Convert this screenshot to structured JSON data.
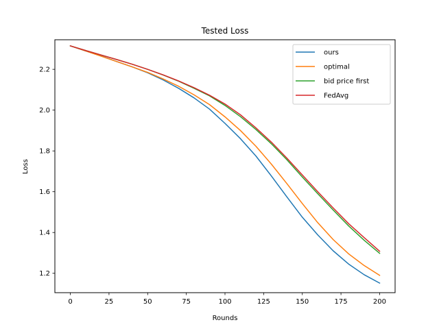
{
  "chart_data": {
    "type": "line",
    "title": "Tested Loss",
    "xlabel": "Rounds",
    "ylabel": "Loss",
    "xlim": [
      -10,
      210
    ],
    "ylim": [
      1.105,
      2.345
    ],
    "xticks": [
      0,
      25,
      50,
      75,
      100,
      125,
      150,
      175,
      200
    ],
    "yticks": [
      1.2,
      1.4,
      1.6,
      1.8,
      2.0,
      2.2
    ],
    "legend_position": "upper-right",
    "grid": false,
    "x": [
      0,
      10,
      20,
      30,
      40,
      50,
      60,
      70,
      80,
      90,
      100,
      110,
      120,
      130,
      140,
      150,
      160,
      170,
      180,
      190,
      200
    ],
    "series": [
      {
        "name": "ours",
        "color": "#1f77b4",
        "values": [
          2.315,
          2.29,
          2.265,
          2.238,
          2.212,
          2.183,
          2.148,
          2.107,
          2.06,
          2.005,
          1.935,
          1.86,
          1.775,
          1.677,
          1.575,
          1.475,
          1.388,
          1.31,
          1.245,
          1.193,
          1.152
        ]
      },
      {
        "name": "optimal",
        "color": "#ff7f0e",
        "values": [
          2.315,
          2.29,
          2.264,
          2.238,
          2.212,
          2.185,
          2.153,
          2.117,
          2.075,
          2.027,
          1.967,
          1.9,
          1.823,
          1.735,
          1.64,
          1.542,
          1.448,
          1.365,
          1.295,
          1.238,
          1.19
        ]
      },
      {
        "name": "bid price first",
        "color": "#2ca02c",
        "values": [
          2.315,
          2.292,
          2.27,
          2.248,
          2.225,
          2.2,
          2.172,
          2.142,
          2.107,
          2.07,
          2.023,
          1.968,
          1.905,
          1.835,
          1.757,
          1.672,
          1.59,
          1.51,
          1.432,
          1.362,
          1.298
        ]
      },
      {
        "name": "FedAvg",
        "color": "#d62728",
        "values": [
          2.315,
          2.292,
          2.27,
          2.248,
          2.225,
          2.2,
          2.173,
          2.143,
          2.11,
          2.073,
          2.03,
          1.977,
          1.913,
          1.843,
          1.765,
          1.682,
          1.6,
          1.52,
          1.443,
          1.375,
          1.308
        ]
      }
    ]
  }
}
